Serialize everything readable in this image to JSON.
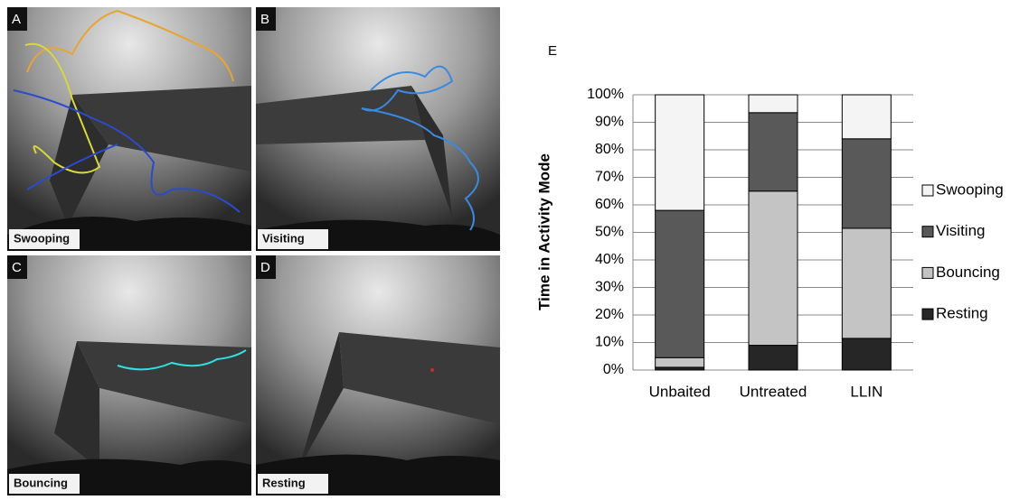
{
  "panels": [
    {
      "letter": "A",
      "label": "Swooping"
    },
    {
      "letter": "B",
      "label": "Visiting"
    },
    {
      "letter": "C",
      "label": "Bouncing"
    },
    {
      "letter": "D",
      "label": "Resting"
    }
  ],
  "chart_data": {
    "type": "stacked_bar",
    "panel": "E",
    "y_label": "Time in Activity Mode",
    "categories": [
      "Unbaited",
      "Untreated",
      "LLIN"
    ],
    "series": [
      {
        "name": "Resting",
        "color": "#262626",
        "values": [
          1,
          9,
          11.5
        ]
      },
      {
        "name": "Bouncing",
        "color": "#c4c4c4",
        "values": [
          3.5,
          56,
          40
        ]
      },
      {
        "name": "Visiting",
        "color": "#595959",
        "values": [
          53.5,
          28.5,
          32.5
        ]
      },
      {
        "name": "Swooping",
        "color": "#f4f4f4",
        "values": [
          42,
          6.5,
          16
        ]
      }
    ],
    "ylim": [
      0,
      100
    ],
    "yticks": [
      {
        "value": 0,
        "label": "0%"
      },
      {
        "value": 10,
        "label": "10%"
      },
      {
        "value": 20,
        "label": "20%"
      },
      {
        "value": 30,
        "label": "30%"
      },
      {
        "value": 40,
        "label": "40%"
      },
      {
        "value": 50,
        "label": "50%"
      },
      {
        "value": 60,
        "label": "60%"
      },
      {
        "value": 70,
        "label": "70%"
      },
      {
        "value": 80,
        "label": "80%"
      },
      {
        "value": 90,
        "label": "90%"
      },
      {
        "value": 100,
        "label": "100%"
      }
    ],
    "grid": true
  }
}
